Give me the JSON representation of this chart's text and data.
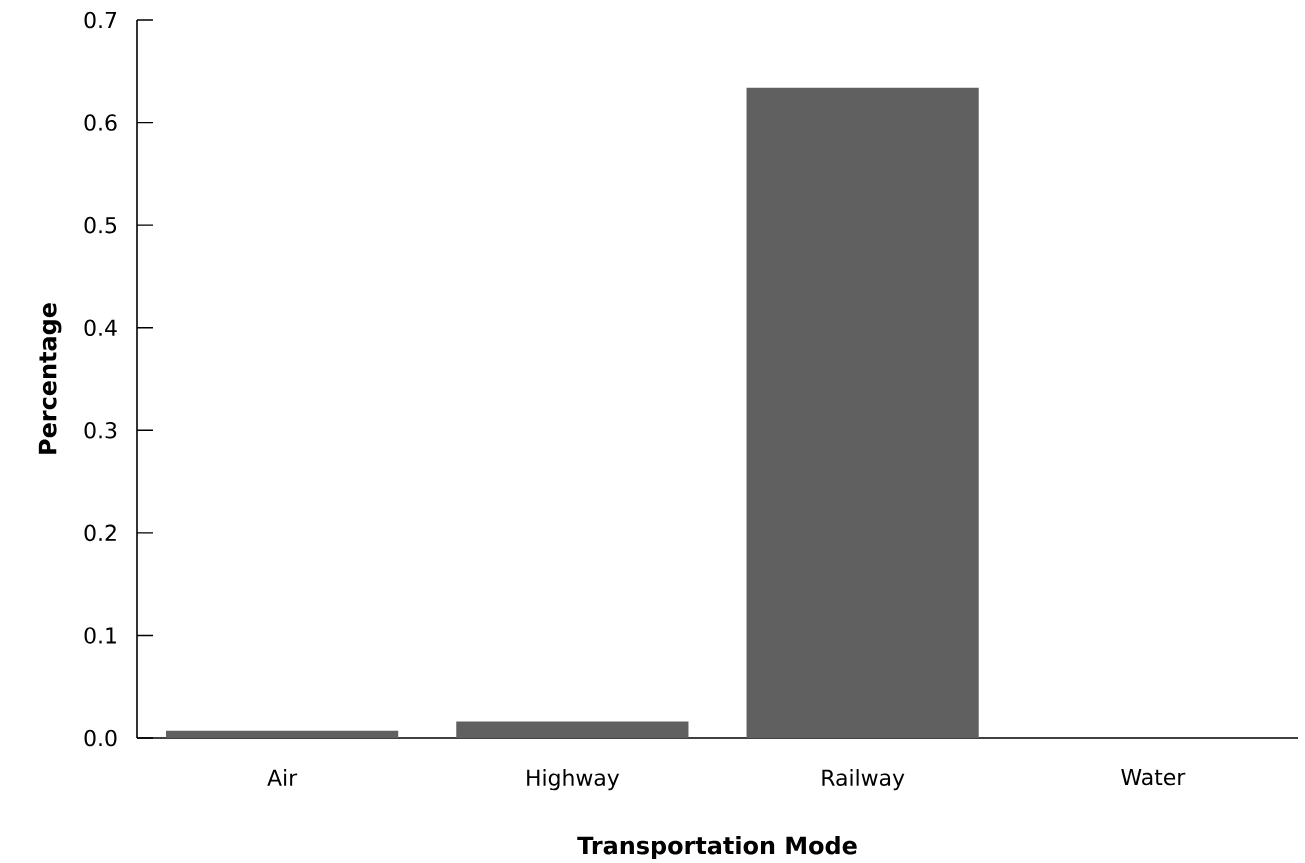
{
  "chart_data": {
    "type": "bar",
    "xlabel": "Transportation Mode",
    "ylabel": "Percentage",
    "categories": [
      "Air",
      "Highway",
      "Railway",
      "Water"
    ],
    "values": [
      0.007,
      0.016,
      0.634,
      0.0
    ],
    "color": "#606060",
    "ylim": [
      0,
      0.7
    ],
    "yticks": [
      {
        "value": 0,
        "label": "0.0"
      },
      0.1,
      0.2,
      0.3,
      0.4,
      0.5,
      0.6,
      0.7
    ],
    "grid": false
  }
}
